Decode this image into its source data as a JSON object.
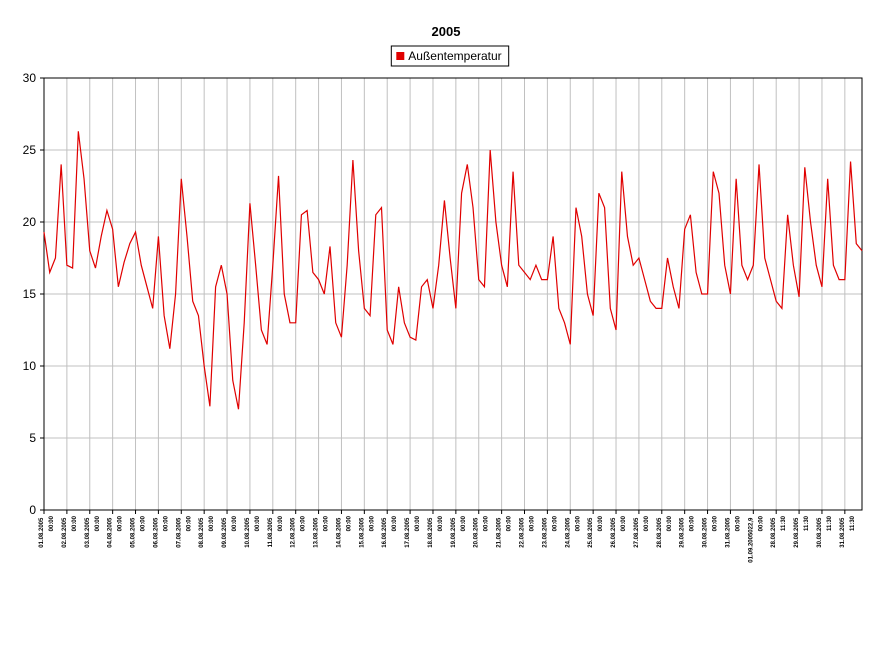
{
  "chart_data": {
    "type": "line",
    "title": "2005",
    "series": [
      {
        "name": "Außentemperatur",
        "color": "#e00000",
        "values": [
          19.3,
          16.5,
          17.5,
          24.0,
          17,
          16.8,
          26.3,
          23,
          18,
          16.8,
          19,
          20.8,
          19.5,
          15.5,
          17.2,
          18.5,
          19.3,
          17,
          15.5,
          14,
          19,
          13.5,
          11.2,
          15,
          23,
          19,
          14.5,
          13.5,
          10,
          7.2,
          15.5,
          17,
          15,
          9,
          7,
          13,
          21.3,
          17,
          12.5,
          11.5,
          17,
          23.2,
          15,
          13,
          13,
          20.5,
          20.8,
          16.5,
          16,
          15,
          18.3,
          13,
          12,
          17,
          24.3,
          18,
          14,
          13.5,
          20.5,
          21,
          12.5,
          11.5,
          15.5,
          13,
          12,
          11.8,
          15.5,
          16,
          14,
          17,
          21.5,
          17.5,
          14,
          22,
          24,
          21,
          16,
          15.5,
          25,
          20,
          17,
          15.5,
          23.5,
          17,
          16.5,
          16,
          17,
          16,
          16,
          19,
          14,
          13,
          11.5,
          21,
          19,
          15,
          13.5,
          22,
          21,
          14,
          12.5,
          23.5,
          19,
          17,
          17.5,
          16,
          14.5,
          14,
          14,
          17.5,
          15.5,
          14,
          19.5,
          20.5,
          16.5,
          15,
          15,
          23.5,
          22,
          17,
          15,
          23,
          17,
          16,
          17,
          24,
          17.5,
          16,
          14.5,
          14,
          20.5,
          17,
          14.8,
          23.8,
          20,
          17,
          15.5,
          23,
          17,
          16,
          16,
          24.2,
          18.5,
          18
        ]
      }
    ],
    "categories": [
      "01.08.2005 00:00",
      null,
      null,
      null,
      "02.08.2005 00:00",
      null,
      null,
      null,
      "03.08.2005 00:00",
      null,
      null,
      null,
      "04.08.2005 00:00",
      null,
      null,
      null,
      "05.08.2005 00:00",
      null,
      null,
      null,
      "06.08.2005 00:00",
      null,
      null,
      null,
      "07.08.2005 00:00",
      null,
      null,
      null,
      "08.08.2005 00:00",
      null,
      null,
      null,
      "09.08.2005 00:00",
      null,
      null,
      null,
      "10.08.2005 00:00",
      null,
      null,
      null,
      "11.08.2005 00:00",
      null,
      null,
      null,
      "12.08.2005 00:00",
      null,
      null,
      null,
      "13.08.2005 00:00",
      null,
      null,
      null,
      "14.08.2005 00:00",
      null,
      null,
      null,
      "15.08.2005 00:00",
      null,
      null,
      null,
      "16.08.2005 00:00",
      null,
      null,
      null,
      "17.08.2005 00:00",
      null,
      null,
      null,
      "18.08.2005 00:00",
      null,
      null,
      null,
      "19.08.2005 00:00",
      null,
      null,
      null,
      "20.08.2005 00:00",
      null,
      null,
      null,
      "21.08.2005 00:00",
      null,
      null,
      null,
      "22.08.2005 00:00",
      null,
      null,
      null,
      "23.08.2005 00:00",
      null,
      null,
      null,
      "24.08.2005 00:00",
      null,
      null,
      null,
      "25.08.2005 00:00",
      null,
      null,
      null,
      "26.08.2005 00:00",
      null,
      null,
      null,
      "27.08.2005 00:00",
      null,
      null,
      null,
      "28.08.2005 00:00",
      null,
      null,
      null,
      "29.08.2005 00:00",
      null,
      null,
      null,
      "30.08.2005 00:00",
      null,
      null,
      null,
      "31.08.2005 00:00",
      null,
      null,
      null,
      "01.09.2005022,9 00:00",
      null,
      null,
      null,
      "28.08.2005 11:30",
      null,
      null,
      null,
      "29.08.2005 11:30",
      null,
      null,
      null,
      "30.08.2005 11:30",
      null,
      null,
      null,
      "31.08.2005 11:30",
      null,
      null,
      null
    ],
    "ylim": [
      0,
      30
    ],
    "yticks": [
      0,
      5,
      10,
      15,
      20,
      25,
      30
    ],
    "grid": true,
    "legend": "top"
  }
}
